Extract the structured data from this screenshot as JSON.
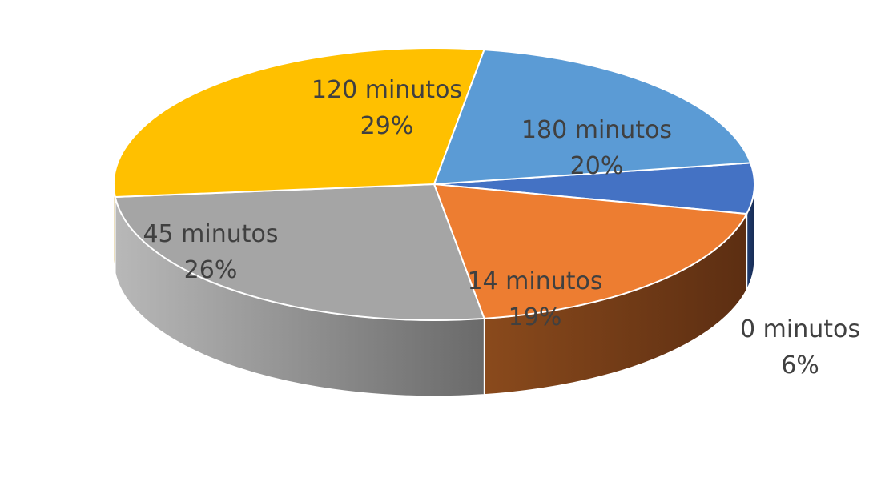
{
  "chart_data": {
    "type": "pie",
    "style": "3d",
    "categories": [
      "0 minutos",
      "14 minutos",
      "45 minutos",
      "120 minutos",
      "180 minutos"
    ],
    "values": [
      6,
      19,
      26,
      29,
      20
    ],
    "unit": "%",
    "colors": [
      "#4472C4",
      "#ED7D31",
      "#A5A5A5",
      "#FFC000",
      "#5B9BD5"
    ],
    "data_labels": [
      {
        "name": "0 minutos",
        "percent": "6%"
      },
      {
        "name": "14 minutos",
        "percent": "19%"
      },
      {
        "name": "45 minutos",
        "percent": "26%"
      },
      {
        "name": "120 minutos",
        "percent": "29%"
      },
      {
        "name": "180 minutos",
        "percent": "20%"
      }
    ],
    "legend": "none"
  }
}
